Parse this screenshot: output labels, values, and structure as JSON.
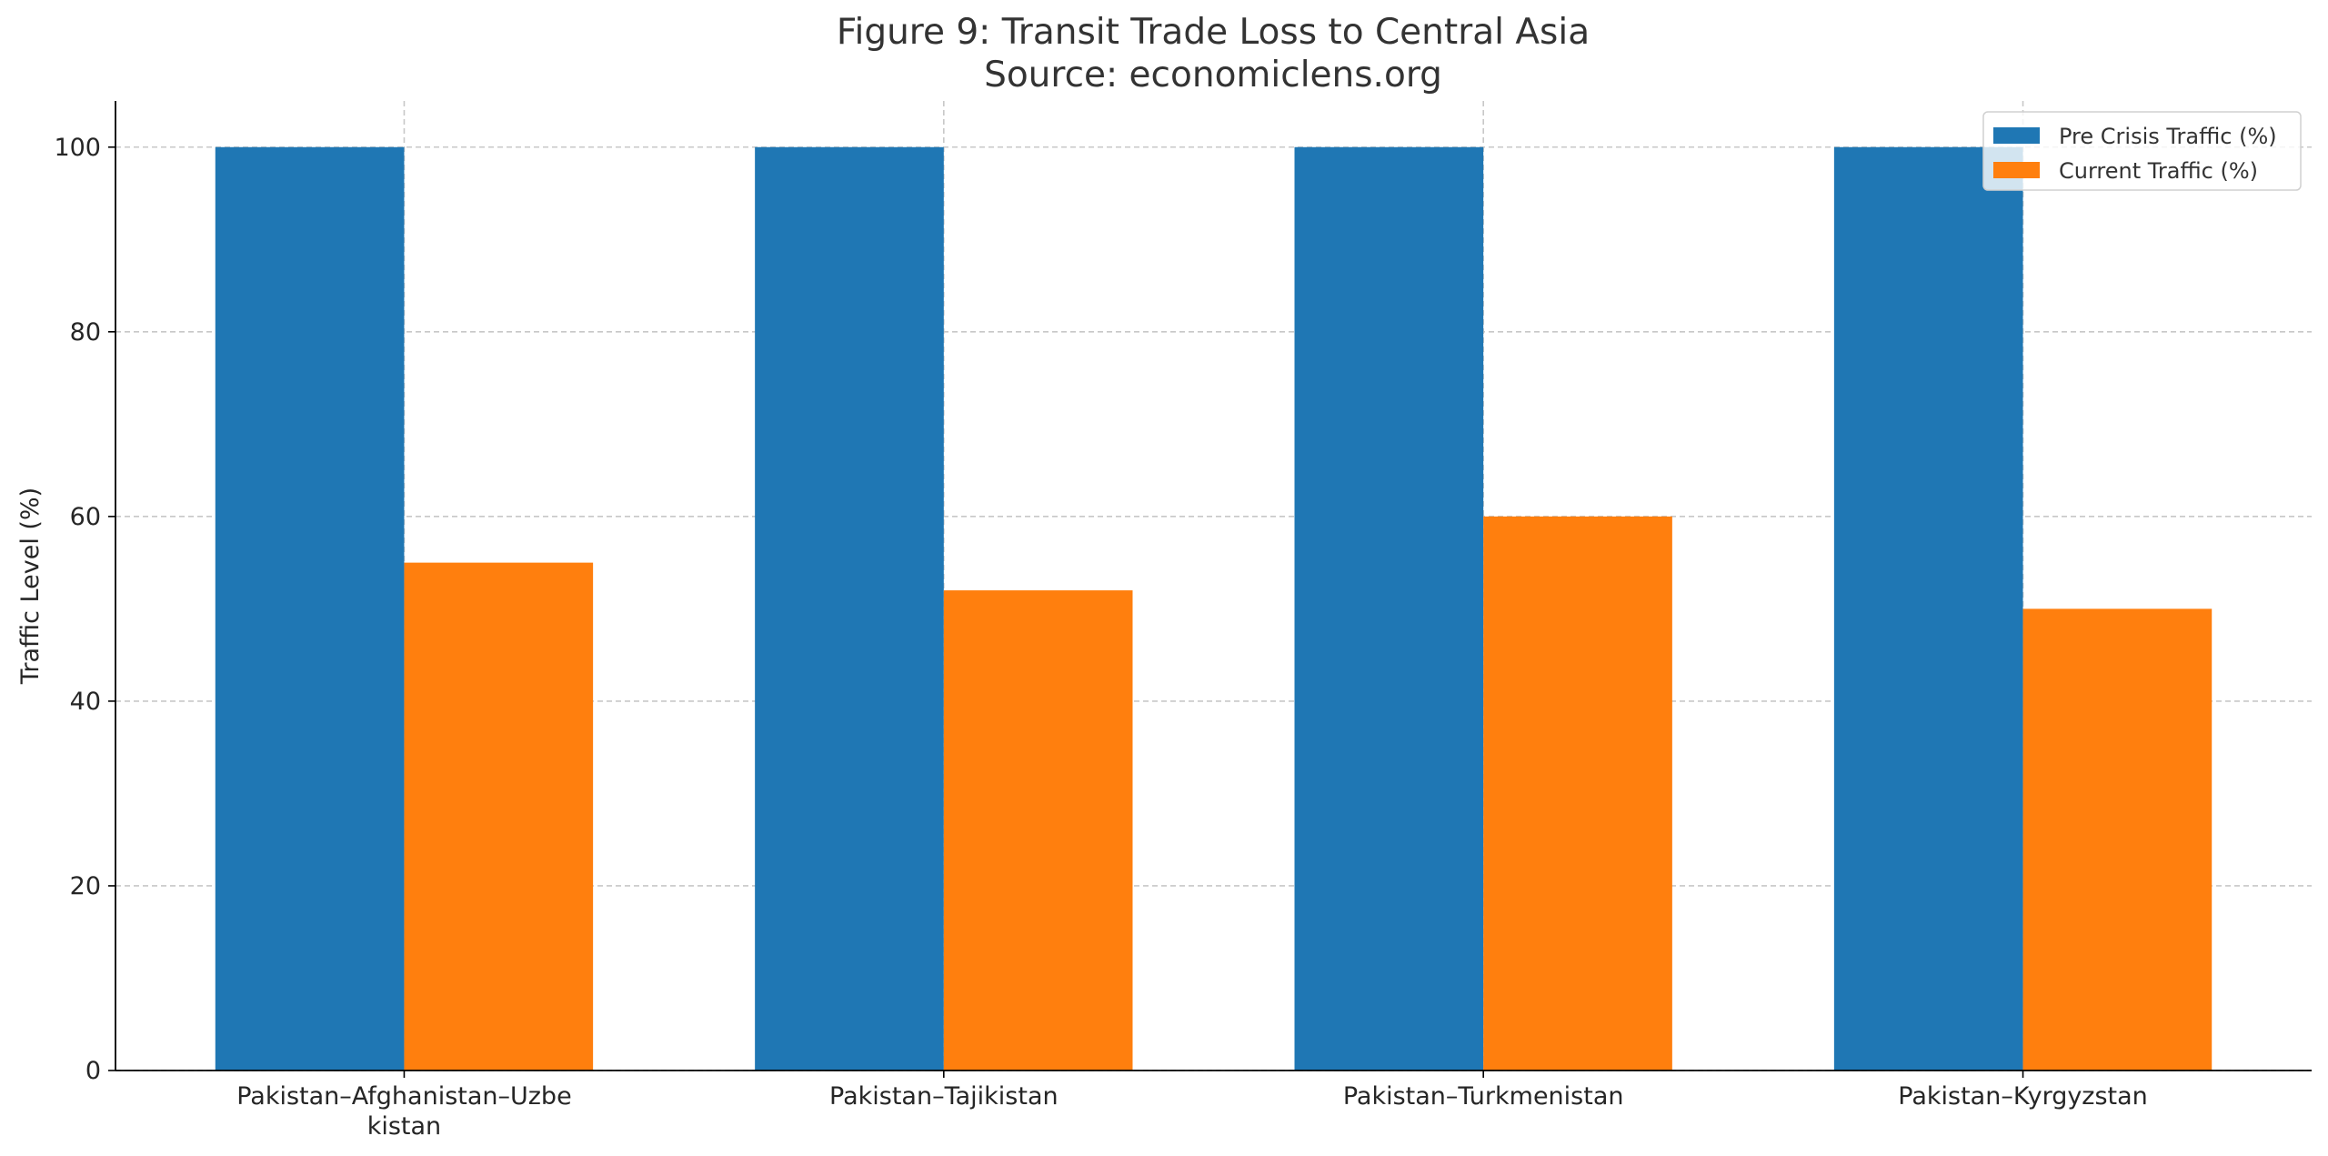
{
  "chart_data": {
    "type": "bar",
    "title": "Figure 9: Transit Trade Loss to Central Asia",
    "subtitle": "Source: economiclens.org",
    "xlabel": "",
    "ylabel": "Traffic Level (%)",
    "ylim": [
      0,
      105
    ],
    "yticks": [
      0,
      20,
      40,
      60,
      80,
      100
    ],
    "grid": true,
    "legend_position": "top-right",
    "categories": [
      [
        "Pakistan–Afghanistan–Uzbe",
        "kistan"
      ],
      [
        "Pakistan–Tajikistan"
      ],
      [
        "Pakistan–Turkmenistan"
      ],
      [
        "Pakistan–Kyrgyzstan"
      ]
    ],
    "series": [
      {
        "name": "Pre Crisis Traffic (%)",
        "color": "#1f77b4",
        "values": [
          100,
          100,
          100,
          100
        ]
      },
      {
        "name": "Current Traffic (%)",
        "color": "#ff7f0e",
        "values": [
          55,
          52,
          60,
          50
        ]
      }
    ]
  }
}
